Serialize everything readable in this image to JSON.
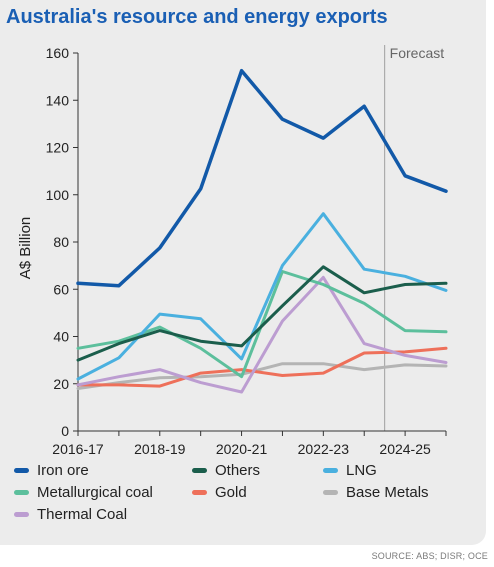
{
  "title": "Australia's resource and energy exports",
  "source": "SOURCE: ABS; DISR; OCE",
  "chart_data": {
    "type": "line",
    "title": "Australia's resource and energy exports",
    "ylabel": "A$ Billion",
    "xlabel": "",
    "ylim": [
      0,
      160
    ],
    "yticks": [
      "0",
      "20",
      "40",
      "60",
      "80",
      "100",
      "120",
      "140",
      "160"
    ],
    "x": [
      "2016-17",
      "2017-18",
      "2018-19",
      "2019-20",
      "2020-21",
      "2021-22",
      "2022-23",
      "2023-24",
      "2024-25",
      "2025-26"
    ],
    "xtick_labels": [
      "2016-17",
      "2018-19",
      "2020-21",
      "2022-23",
      "2024-25"
    ],
    "forecast_label": "Forecast",
    "forecast_start": "2023-24",
    "grid": false,
    "legend_position": "bottom",
    "series": [
      {
        "name": "Iron ore",
        "color": "#1259a8",
        "values": [
          62.5,
          61.5,
          77.5,
          102.5,
          152.5,
          132,
          124,
          137.5,
          108,
          101.5
        ]
      },
      {
        "name": "Others",
        "color": "#1b5e4c",
        "values": [
          30,
          37,
          42.5,
          38,
          36,
          53,
          69.5,
          58.5,
          62,
          62.5
        ]
      },
      {
        "name": "LNG",
        "color": "#4ab0df",
        "values": [
          22,
          31,
          49.5,
          47.5,
          30.5,
          70,
          92,
          68.5,
          65.5,
          59.5
        ]
      },
      {
        "name": "Metallurgical coal",
        "color": "#5cbf9c",
        "values": [
          35,
          38,
          44,
          35,
          23,
          67.5,
          62,
          54,
          42.5,
          42
        ]
      },
      {
        "name": "Gold",
        "color": "#ee705a",
        "values": [
          19.5,
          19.5,
          19,
          24.5,
          26,
          23.5,
          24.5,
          33,
          33.5,
          35
        ]
      },
      {
        "name": "Base Metals",
        "color": "#b4b4b4",
        "values": [
          18,
          20.5,
          22.5,
          23,
          24,
          28.5,
          28.5,
          26,
          28,
          27.5
        ]
      },
      {
        "name": "Thermal Coal",
        "color": "#bc9dd1",
        "values": [
          19.5,
          23,
          26,
          20.5,
          16.5,
          46.5,
          65,
          37,
          32,
          29
        ]
      }
    ]
  }
}
